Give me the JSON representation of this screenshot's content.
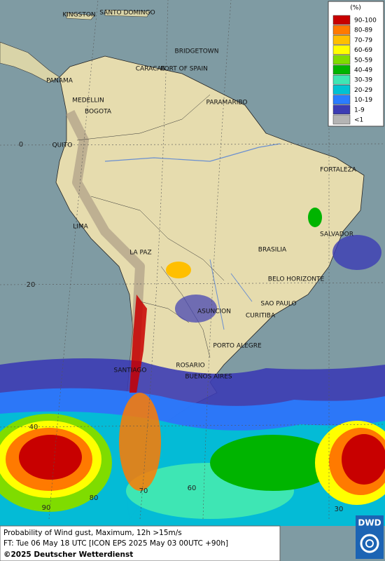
{
  "map_labels": [
    "KINGSTON",
    "SANTO DOMINGO",
    "BRIDGETOWN",
    "CARACAS",
    "PORT OF SPAIN",
    "PANAMA",
    "MEDELLIN",
    "BOGOTA",
    "PARAMARIBO",
    "QUITO",
    "FORTALEZA",
    "LIMA",
    "SALVADOR",
    "BRASILIA",
    "LA PAZ",
    "BELO HORIZONTE",
    "SAO PAULO",
    "ASUNCION",
    "CURITIBA",
    "PORTO ALEGRE",
    "ROSARIO",
    "SANTIAGO",
    "BUENOS AIRES"
  ],
  "latitude_labels": [
    0,
    20,
    40
  ],
  "longitude_labels": [
    90,
    80,
    70,
    60,
    30
  ],
  "legend": {
    "title": "(%)",
    "entries": [
      {
        "label": "90-100",
        "color": "#c80000"
      },
      {
        "label": "80-89",
        "color": "#ff7a00"
      },
      {
        "label": "70-79",
        "color": "#ffbf00"
      },
      {
        "label": "60-69",
        "color": "#ffff00"
      },
      {
        "label": "50-59",
        "color": "#7fdc00"
      },
      {
        "label": "40-49",
        "color": "#00b400"
      },
      {
        "label": "30-39",
        "color": "#3ee6b4"
      },
      {
        "label": "20-29",
        "color": "#00c2d2"
      },
      {
        "label": "10-19",
        "color": "#2a7cff"
      },
      {
        "label": "1-9",
        "color": "#3c3cb4"
      },
      {
        "label": "<1",
        "color": "#b4b4b4"
      }
    ]
  },
  "footer": {
    "line1": "Probability of Wind gust, Maximum, 12h >15m/s",
    "line2": "FT: Tue 06 May 18 UTC [ICON EPS 2025 May 03 00UTC +90h]",
    "copyright": "©2025 Deutscher Wetterdienst"
  },
  "logo": "DWD"
}
